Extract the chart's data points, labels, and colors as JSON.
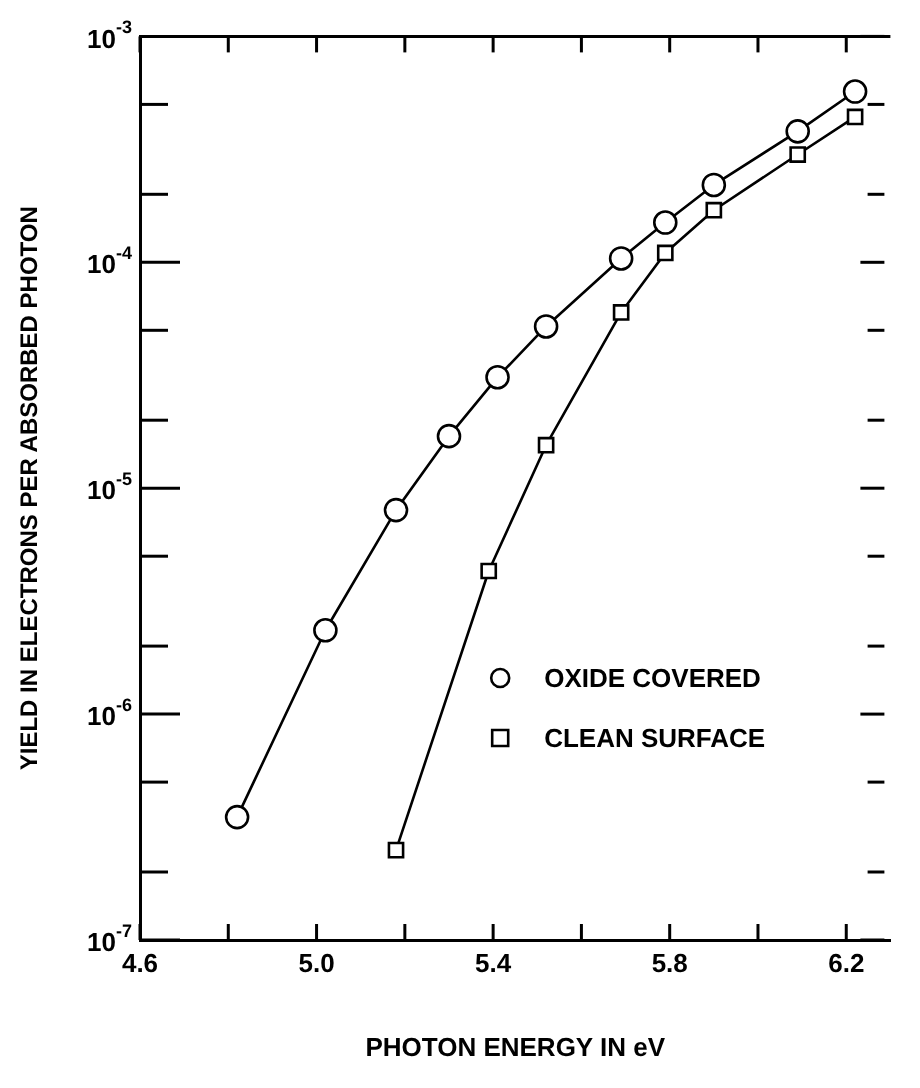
{
  "chart_data": {
    "type": "line",
    "xlabel": "PHOTON ENERGY IN eV",
    "ylabel": "YIELD IN ELECTRONS PER ABSORBED PHOTON",
    "log": "y",
    "grid": false,
    "legend": "right",
    "line_style": "solid",
    "xlim": [
      4.6,
      6.3
    ],
    "xticks": [
      4.6,
      {
        "value": 4.8,
        "label": null
      },
      {
        "value": 5.0,
        "label": "5.0"
      },
      {
        "value": 5.2,
        "label": null
      },
      5.4,
      {
        "value": 5.6,
        "label": null
      },
      5.8,
      {
        "value": 6.0,
        "label": null
      },
      6.2
    ],
    "ylim": [
      1e-07,
      0.001
    ],
    "yticks": [
      {
        "value": 1e-07,
        "label": "10$^{-7}$"
      },
      {
        "value": 2e-07,
        "label": null
      },
      {
        "value": 5e-07,
        "label": null
      },
      {
        "value": 1e-06,
        "label": "10$^{-6}$"
      },
      {
        "value": 2e-06,
        "label": null
      },
      {
        "value": 5e-06,
        "label": null
      },
      {
        "value": 1e-05,
        "label": "10$^{-5}$"
      },
      {
        "value": 2e-05,
        "label": null
      },
      {
        "value": 5e-05,
        "label": null
      },
      {
        "value": 0.0001,
        "label": "10$^{-4}$"
      },
      {
        "value": 0.0002,
        "label": null
      },
      {
        "value": 0.0005,
        "label": null
      },
      {
        "value": 0.001,
        "label": "10$^{-3}$"
      }
    ],
    "series": [
      {
        "name": "OXIDE COVERED",
        "color": "#000000",
        "marker": "circle",
        "x": [
          4.82,
          5.02,
          5.18,
          5.3,
          5.41,
          5.52,
          5.69,
          5.79,
          5.9,
          6.09,
          6.22
        ],
        "values": [
          3.5e-07,
          2.35e-06,
          8e-06,
          1.7e-05,
          3.1e-05,
          5.2e-05,
          0.000104,
          0.00015,
          0.00022,
          0.00038,
          0.00057
        ]
      },
      {
        "name": "CLEAN SURFACE",
        "color": "#000000",
        "marker": "square",
        "x": [
          5.18,
          5.39,
          5.52,
          5.69,
          5.79,
          5.9,
          6.09,
          6.22
        ],
        "values": [
          2.5e-07,
          4.3e-06,
          1.55e-05,
          6e-05,
          0.00011,
          0.00017,
          0.0003,
          0.00044
        ]
      }
    ]
  }
}
